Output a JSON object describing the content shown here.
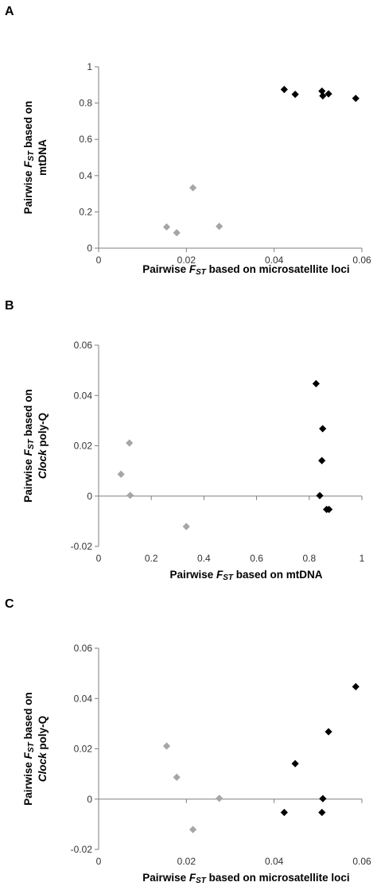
{
  "panels": [
    {
      "letter": "A"
    },
    {
      "letter": "B"
    },
    {
      "letter": "C"
    }
  ],
  "colors": {
    "group1": "#000000",
    "group2": "#a6a6a6",
    "axis": "#7f7f7f"
  },
  "chart_data": [
    {
      "type": "scatter",
      "panel": "A",
      "xlim": [
        0,
        0.06
      ],
      "ylim": [
        0,
        1
      ],
      "xticks": [
        0,
        0.02,
        0.04,
        0.06
      ],
      "yticks": [
        0,
        0.2,
        0.4,
        0.6,
        0.8,
        1
      ],
      "xlabel": [
        {
          "t": "Pairwise ",
          "i": false
        },
        {
          "t": "F",
          "i": true
        },
        {
          "t": "ST",
          "i": true,
          "sub": true
        },
        {
          "t": " based on microsatellite loci",
          "i": false
        }
      ],
      "ylabel": [
        [
          {
            "t": "Pairwise ",
            "i": false
          },
          {
            "t": "F",
            "i": true
          },
          {
            "t": "ST",
            "i": true,
            "sub": true
          },
          {
            "t": " based on",
            "i": false
          }
        ],
        [
          {
            "t": "mtDNA",
            "i": false
          }
        ]
      ],
      "series": [
        {
          "color": "#000000",
          "points": [
            [
              0.0423,
              0.875
            ],
            [
              0.0448,
              0.848
            ],
            [
              0.0509,
              0.866
            ],
            [
              0.0511,
              0.84
            ],
            [
              0.0524,
              0.851
            ],
            [
              0.0586,
              0.826
            ]
          ]
        },
        {
          "color": "#a6a6a6",
          "points": [
            [
              0.0155,
              0.117
            ],
            [
              0.0178,
              0.085
            ],
            [
              0.0215,
              0.333
            ],
            [
              0.0275,
              0.12
            ]
          ]
        }
      ]
    },
    {
      "type": "scatter",
      "panel": "B",
      "xlim": [
        0,
        1
      ],
      "ylim": [
        -0.02,
        0.06
      ],
      "xticks": [
        0,
        0.2,
        0.4,
        0.6,
        0.8,
        1
      ],
      "yticks": [
        -0.02,
        0,
        0.02,
        0.04,
        0.06
      ],
      "xlabel": [
        {
          "t": "Pairwise ",
          "i": false
        },
        {
          "t": "F",
          "i": true
        },
        {
          "t": "ST",
          "i": true,
          "sub": true
        },
        {
          "t": " based on mtDNA",
          "i": false
        }
      ],
      "ylabel": [
        [
          {
            "t": "Pairwise ",
            "i": false
          },
          {
            "t": "F",
            "i": true
          },
          {
            "t": "ST",
            "i": true,
            "sub": true
          },
          {
            "t": " based on",
            "i": false
          }
        ],
        [
          {
            "t": "Clock",
            "i": true
          },
          {
            "t": " poly-Q",
            "i": false
          }
        ]
      ],
      "series": [
        {
          "color": "#000000",
          "points": [
            [
              0.826,
              0.0447
            ],
            [
              0.851,
              0.0268
            ],
            [
              0.848,
              0.0141
            ],
            [
              0.84,
              0.0002
            ],
            [
              0.866,
              -0.0053
            ],
            [
              0.875,
              -0.0053
            ]
          ]
        },
        {
          "color": "#a6a6a6",
          "points": [
            [
              0.117,
              0.0211
            ],
            [
              0.085,
              0.0087
            ],
            [
              0.12,
              0.0003
            ],
            [
              0.333,
              -0.0121
            ]
          ]
        }
      ]
    },
    {
      "type": "scatter",
      "panel": "C",
      "xlim": [
        0,
        0.06
      ],
      "ylim": [
        -0.02,
        0.06
      ],
      "xticks": [
        0,
        0.02,
        0.04,
        0.06
      ],
      "yticks": [
        -0.02,
        0,
        0.02,
        0.04,
        0.06
      ],
      "xlabel": [
        {
          "t": "Pairwise ",
          "i": false
        },
        {
          "t": "F",
          "i": true
        },
        {
          "t": "ST",
          "i": true,
          "sub": true
        },
        {
          "t": " based on microsatellite loci",
          "i": false
        }
      ],
      "ylabel": [
        [
          {
            "t": "Pairwise ",
            "i": false
          },
          {
            "t": "F",
            "i": true
          },
          {
            "t": "ST",
            "i": true,
            "sub": true
          },
          {
            "t": " based on",
            "i": false
          }
        ],
        [
          {
            "t": "Clock",
            "i": true
          },
          {
            "t": " poly-Q",
            "i": false
          }
        ]
      ],
      "series": [
        {
          "color": "#000000",
          "points": [
            [
              0.0586,
              0.0447
            ],
            [
              0.0524,
              0.0268
            ],
            [
              0.0448,
              0.0141
            ],
            [
              0.0511,
              0.0002
            ],
            [
              0.0423,
              -0.0053
            ],
            [
              0.0509,
              -0.0053
            ]
          ]
        },
        {
          "color": "#a6a6a6",
          "points": [
            [
              0.0155,
              0.0211
            ],
            [
              0.0178,
              0.0087
            ],
            [
              0.0275,
              0.0003
            ],
            [
              0.0215,
              -0.0121
            ]
          ]
        }
      ]
    }
  ]
}
